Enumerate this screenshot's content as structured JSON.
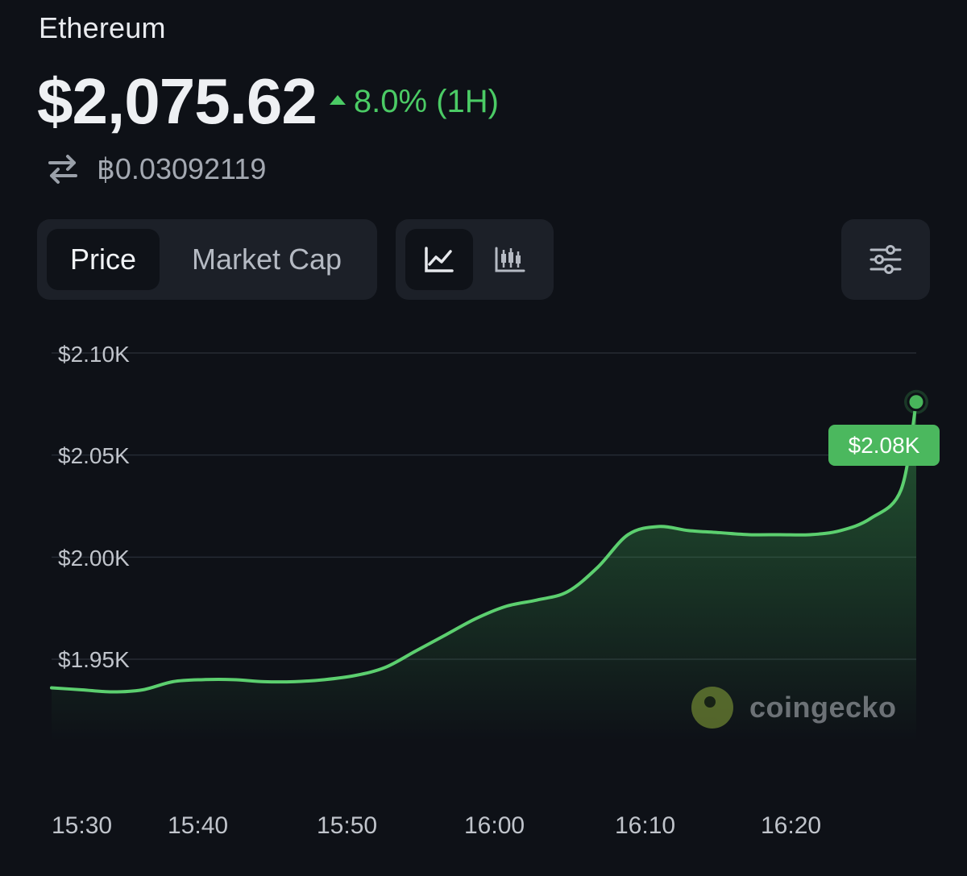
{
  "header": {
    "coin_name": "Ethereum",
    "price": "$2,075.62",
    "change": "8.0% (1H)",
    "change_direction": "up",
    "btc_price": "฿0.03092119"
  },
  "controls": {
    "metric_tabs": [
      {
        "label": "Price",
        "active": true
      },
      {
        "label": "Market Cap",
        "active": false
      }
    ],
    "chart_types": [
      {
        "icon": "line-chart-icon",
        "active": true
      },
      {
        "icon": "candlestick-chart-icon",
        "active": false
      }
    ],
    "settings_icon": "sliders-icon"
  },
  "colors": {
    "background": "#0e1117",
    "accent_green": "#4bcb65",
    "panel": "#1c2028"
  },
  "chart_data": {
    "type": "area",
    "x": [
      "15:30",
      "15:32",
      "15:34",
      "15:36",
      "15:38",
      "15:40",
      "15:42",
      "15:44",
      "15:46",
      "15:48",
      "15:50",
      "15:52",
      "15:54",
      "15:56",
      "15:58",
      "16:00",
      "16:02",
      "16:04",
      "16:06",
      "16:08",
      "16:10",
      "16:12",
      "16:14",
      "16:16",
      "16:18",
      "16:20",
      "16:22",
      "16:24",
      "16:26",
      "16:27"
    ],
    "values": [
      1936,
      1935,
      1934,
      1935,
      1939,
      1940,
      1940,
      1939,
      1939,
      1940,
      1942,
      1946,
      1954,
      1962,
      1970,
      1976,
      1979,
      1983,
      1995,
      2011,
      2015,
      2013,
      2012,
      2011,
      2011,
      2011,
      2013,
      2019,
      2033,
      2076
    ],
    "ylim": [
      1910,
      2110
    ],
    "y_ticks": [
      "$2.10K",
      "$2.05K",
      "$2.00K",
      "$1.95K"
    ],
    "y_tick_values": [
      2100,
      2050,
      2000,
      1950
    ],
    "x_ticks": [
      "15:30",
      "15:40",
      "15:50",
      "16:00",
      "16:10",
      "16:20"
    ],
    "current_label": "$2.08K",
    "grid": true,
    "watermark": "coingecko"
  }
}
